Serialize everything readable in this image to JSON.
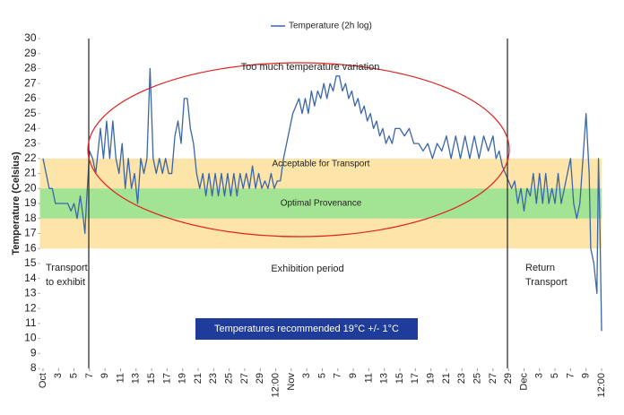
{
  "chart_data": {
    "type": "line",
    "legend_label": "Temperature (2h log)",
    "y_axis_title": "Temperature (Celsius)",
    "series": [
      {
        "name": "Temperature (2h log)",
        "color": "#3a66a8",
        "x": [
          0,
          0.2,
          0.4,
          0.6,
          0.8,
          1.2,
          1.6,
          1.8,
          2.0,
          2.2,
          2.4,
          2.6,
          2.7,
          2.8,
          3.0,
          3.2,
          3.4,
          3.5,
          3.7,
          3.9,
          4.1,
          4.3,
          4.5,
          4.7,
          4.9,
          5.1,
          5.3,
          5.5,
          5.7,
          5.9,
          6.1,
          6.3,
          6.5,
          6.7,
          6.9,
          7.1,
          7.3,
          7.5,
          7.7,
          7.9,
          8.1,
          8.3,
          8.5,
          8.7,
          8.9,
          9.1,
          9.3,
          9.5,
          9.7,
          9.9,
          10.1,
          10.3,
          10.5,
          10.7,
          10.9,
          11.1,
          11.3,
          11.5,
          11.7,
          11.9,
          12.1,
          12.3,
          12.5,
          12.7,
          12.9,
          13.1,
          13.3,
          13.5,
          13.7,
          13.9,
          14.1,
          14.3,
          14.5,
          14.7,
          14.9,
          15.1,
          15.3,
          15.5,
          15.7,
          15.9,
          16.1,
          16.3,
          16.5,
          16.7,
          16.9,
          17.1,
          17.3,
          17.5,
          17.7,
          17.9,
          18.1,
          18.3,
          18.5,
          18.7,
          18.9,
          19.1,
          19.3,
          19.5,
          19.7,
          19.9,
          20.1,
          20.3,
          20.5,
          20.7,
          20.9,
          21.1,
          21.3,
          21.5,
          21.7,
          21.9,
          22.1,
          22.3,
          22.5,
          22.7,
          23.0,
          23.3,
          23.6,
          23.9,
          24.2,
          24.5,
          24.8,
          25.1,
          25.4,
          25.7,
          26.0,
          26.3,
          26.6,
          26.9,
          27.2,
          27.5,
          27.8,
          28.1,
          28.4,
          28.7,
          29.0,
          29.2,
          29.4,
          29.6,
          29.8,
          30.0,
          30.2,
          30.4,
          30.6,
          30.8,
          31.0,
          31.2,
          31.4,
          31.6,
          31.8,
          32.0,
          32.2,
          32.4,
          32.6,
          32.8,
          33.0,
          33.2,
          33.4,
          33.6,
          33.8,
          34.0,
          34.2,
          34.4,
          34.6,
          34.8,
          35.0,
          35.2,
          35.3,
          35.5,
          35.7,
          35.8,
          35.9,
          36.0
        ],
        "values": [
          22,
          21,
          20,
          20,
          19,
          19,
          19,
          18.5,
          19,
          18,
          19.5,
          18,
          17,
          19,
          22.5,
          22,
          21,
          22,
          24,
          22,
          24.5,
          22,
          24.5,
          22,
          21,
          23,
          20,
          22,
          20,
          21,
          19,
          22,
          21,
          22,
          28,
          22,
          21,
          22,
          21,
          22,
          21,
          21,
          23.5,
          24.5,
          23,
          26,
          26,
          24,
          23,
          21,
          20,
          21,
          19.5,
          21,
          19.5,
          21,
          19.5,
          21,
          19.5,
          21,
          19.5,
          21,
          19.5,
          21,
          20,
          21,
          20,
          21.5,
          20,
          21,
          20,
          20.5,
          20,
          21,
          20,
          20.5,
          20.5,
          22,
          23,
          24,
          25,
          25.5,
          26,
          25,
          26,
          25,
          26.5,
          25.5,
          26.5,
          26,
          27,
          26,
          27,
          26.5,
          27.5,
          27.5,
          26.5,
          27,
          26,
          26.5,
          25.5,
          26,
          25,
          25.5,
          24.5,
          25,
          24,
          24.5,
          23.5,
          24,
          23,
          23.5,
          23,
          24,
          24,
          23.5,
          24,
          23,
          23,
          22.5,
          23,
          22,
          23,
          22.5,
          23.5,
          22,
          23.5,
          22,
          23.5,
          22,
          23.5,
          22,
          23.5,
          22.5,
          23.5,
          22,
          22.5,
          21.5,
          21,
          20.5,
          20,
          20.5,
          19,
          20,
          18.5,
          20,
          19.5,
          21,
          19,
          21,
          19,
          21,
          19,
          20,
          19,
          21,
          19,
          20,
          21,
          22,
          19,
          18,
          19,
          22,
          25,
          21,
          16,
          15,
          13,
          22,
          17,
          10.5
        ]
      }
    ],
    "bands": [
      {
        "label": "Acceptable for Transport",
        "range": [
          16,
          22
        ],
        "color": "#fde4a8"
      },
      {
        "label": "Optimal Provenance",
        "range": [
          18,
          20
        ],
        "color": "#a3e394"
      }
    ],
    "xlim": [
      -0.2,
      36
    ],
    "xticks": [
      {
        "value": 0,
        "label": "Oct"
      },
      {
        "value": 1,
        "label": "3"
      },
      {
        "value": 2,
        "label": "5"
      },
      {
        "value": 3,
        "label": "7"
      },
      {
        "value": 4,
        "label": "9"
      },
      {
        "value": 5,
        "label": "11"
      },
      {
        "value": 6,
        "label": "13"
      },
      {
        "value": 7,
        "label": "15"
      },
      {
        "value": 8,
        "label": "17"
      },
      {
        "value": 9,
        "label": "19"
      },
      {
        "value": 10,
        "label": "21"
      },
      {
        "value": 11,
        "label": "23"
      },
      {
        "value": 12,
        "label": "25"
      },
      {
        "value": 13,
        "label": "27"
      },
      {
        "value": 14,
        "label": "29"
      },
      {
        "value": 15,
        "label": "12:00"
      },
      {
        "value": 16,
        "label": "Nov"
      },
      {
        "value": 17,
        "label": "3"
      },
      {
        "value": 18,
        "label": "5"
      },
      {
        "value": 19,
        "label": "7"
      },
      {
        "value": 20,
        "label": "9"
      },
      {
        "value": 21,
        "label": "11"
      },
      {
        "value": 22,
        "label": "13"
      },
      {
        "value": 23,
        "label": "15"
      },
      {
        "value": 24,
        "label": "17"
      },
      {
        "value": 25,
        "label": "19"
      },
      {
        "value": 26,
        "label": "21"
      },
      {
        "value": 27,
        "label": "23"
      },
      {
        "value": 28,
        "label": "25"
      },
      {
        "value": 29,
        "label": "27"
      },
      {
        "value": 30,
        "label": "29"
      },
      {
        "value": 31,
        "label": "Dec"
      },
      {
        "value": 32,
        "label": "3"
      },
      {
        "value": 33,
        "label": "5"
      },
      {
        "value": 34,
        "label": "7"
      },
      {
        "value": 35,
        "label": "9"
      },
      {
        "value": 36,
        "label": "12:00"
      }
    ],
    "ylim": [
      8,
      30
    ],
    "yticks": [
      8,
      9,
      10,
      11,
      12,
      13,
      14,
      15,
      16,
      17,
      18,
      19,
      20,
      21,
      22,
      23,
      24,
      25,
      26,
      27,
      28,
      29,
      30
    ],
    "annotations": {
      "variation": "Too much temperature variation",
      "transport_to": [
        "Transport",
        "to exhibit"
      ],
      "exhibition": "Exhibition period",
      "return": [
        "Return",
        "Transport"
      ],
      "recommended": "Temperatures recommended 19°C +/- 1°C"
    }
  }
}
